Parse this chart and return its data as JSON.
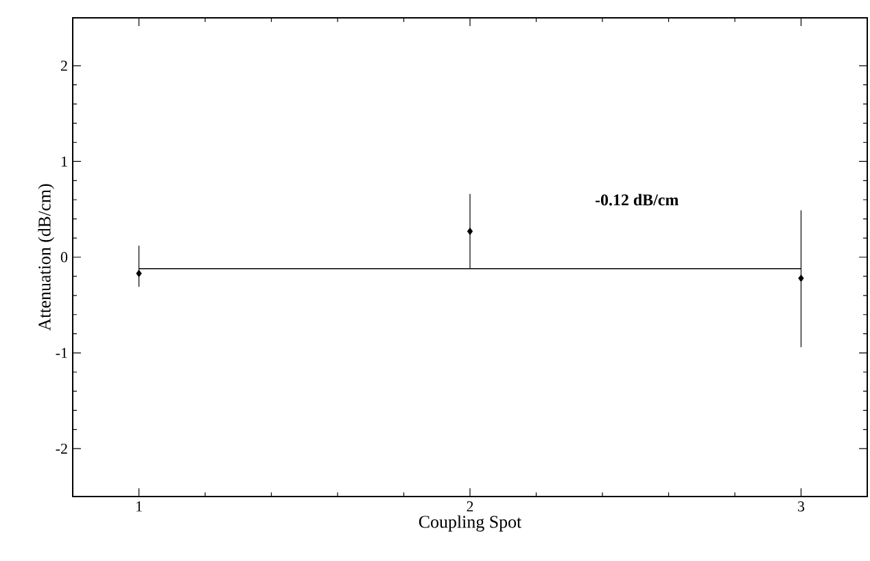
{
  "chart_data": {
    "type": "scatter",
    "xlabel": "Coupling Spot",
    "ylabel": "Attenuation (dB/cm)",
    "xlim": [
      0.8,
      3.2
    ],
    "xticks": [
      1,
      2,
      3
    ],
    "ylim": [
      -2.5,
      2.5
    ],
    "yticks": [
      -2,
      -1,
      0,
      1,
      2
    ],
    "series": [
      {
        "color": "#000000",
        "x": [
          1,
          2,
          3
        ],
        "values": [
          -0.17,
          0.27,
          -0.22
        ],
        "errors": [
          [
            -0.31,
            0.12
          ],
          [
            -0.12,
            0.66
          ],
          [
            -0.94,
            0.49
          ]
        ],
        "marker": "diamond"
      },
      {
        "type": "line",
        "color": "#000000",
        "x": [
          1,
          3
        ],
        "values": [
          -0.12,
          -0.12
        ],
        "marker": "none",
        "line_style": "solid"
      }
    ],
    "annotations": [
      "-0.12 dB/cm"
    ],
    "grid": false
  }
}
